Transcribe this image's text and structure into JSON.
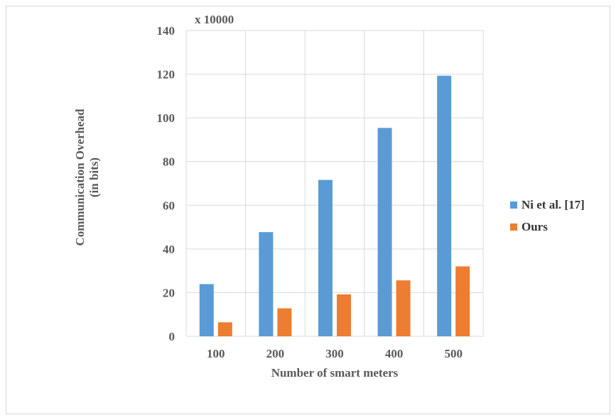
{
  "colors": {
    "series1": "#5b9bd5",
    "series2": "#ed7d31",
    "grid": "#d9d9d9",
    "text": "#595959"
  },
  "chart_data": {
    "type": "bar",
    "categories": [
      "100",
      "200",
      "300",
      "400",
      "500"
    ],
    "series": [
      {
        "name": "Ni et al. [17]",
        "values": [
          23.9,
          47.7,
          71.6,
          95.4,
          119.3
        ]
      },
      {
        "name": "Ours",
        "values": [
          6.4,
          12.8,
          19.2,
          25.6,
          32.0
        ]
      }
    ],
    "title": "",
    "xlabel": "Number of smart meters",
    "ylabel_line1": "Communication Overhead",
    "ylabel_line2": "(in bits)",
    "y_multiplier": "x 10000",
    "ylim": [
      0,
      140
    ],
    "yticks": [
      "0",
      "20",
      "40",
      "60",
      "80",
      "100",
      "120",
      "140"
    ],
    "grid": true,
    "legend_position": "right"
  }
}
